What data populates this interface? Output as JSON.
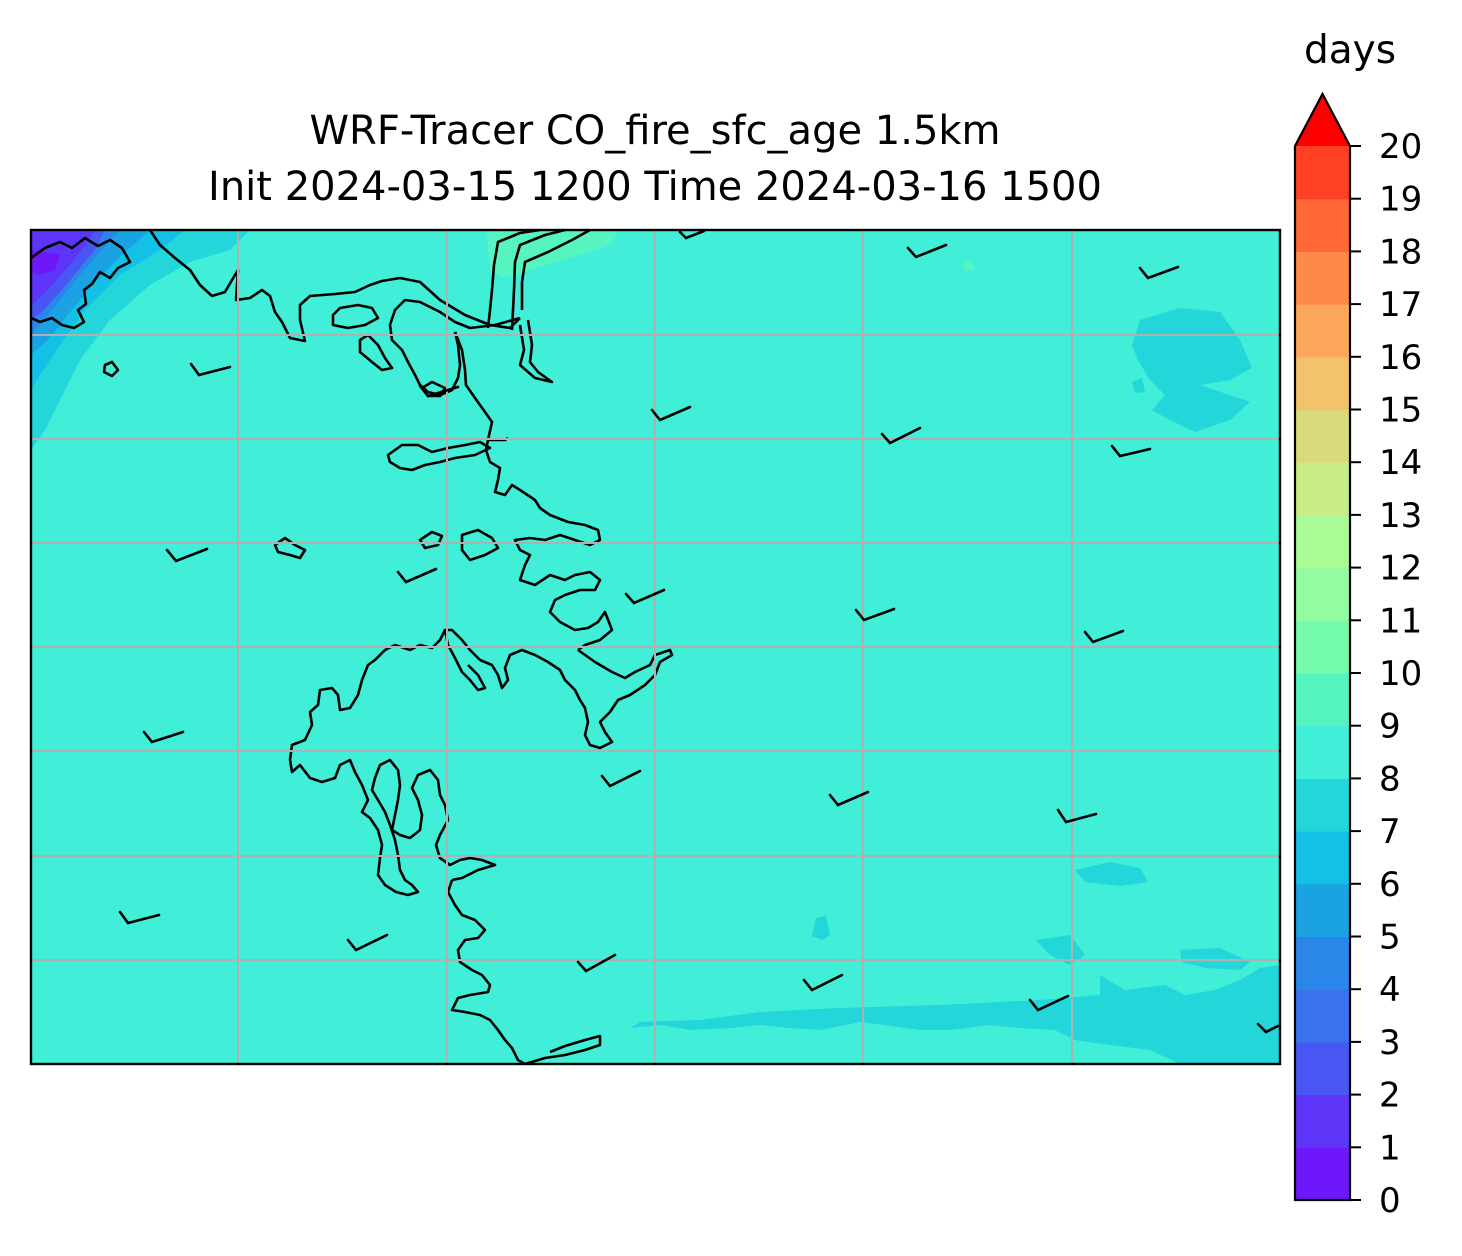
{
  "title": {
    "line1": "WRF-Tracer CO_fire_sfc_age 1.5km",
    "line2": "Init 2024-03-15 1200 Time 2024-03-16 1500"
  },
  "colorbar": {
    "units_label": "days",
    "ticks": [
      "0",
      "1",
      "2",
      "3",
      "4",
      "5",
      "6",
      "7",
      "8",
      "9",
      "10",
      "11",
      "12",
      "13",
      "14",
      "15",
      "16",
      "17",
      "18",
      "19",
      "20"
    ],
    "extend": "max",
    "colors": [
      "#6e17fb",
      "#5c35f8",
      "#4857f3",
      "#3a72ef",
      "#2a86e9",
      "#1aa2e2",
      "#13c0e6",
      "#22d6da",
      "#41eed7",
      "#56f4c0",
      "#74fbab",
      "#94fca0",
      "#a9fb95",
      "#c8ec86",
      "#dada7c",
      "#f3c26d",
      "#fca75b",
      "#fe8a48",
      "#ff6836",
      "#ff4022",
      "#ff1a0e",
      "#ff0000"
    ]
  },
  "map": {
    "background_color": "#41eed7",
    "gridline_color": "#b0b0b0",
    "coastline_color": "#000000",
    "wind_barb_color": "#000000"
  }
}
